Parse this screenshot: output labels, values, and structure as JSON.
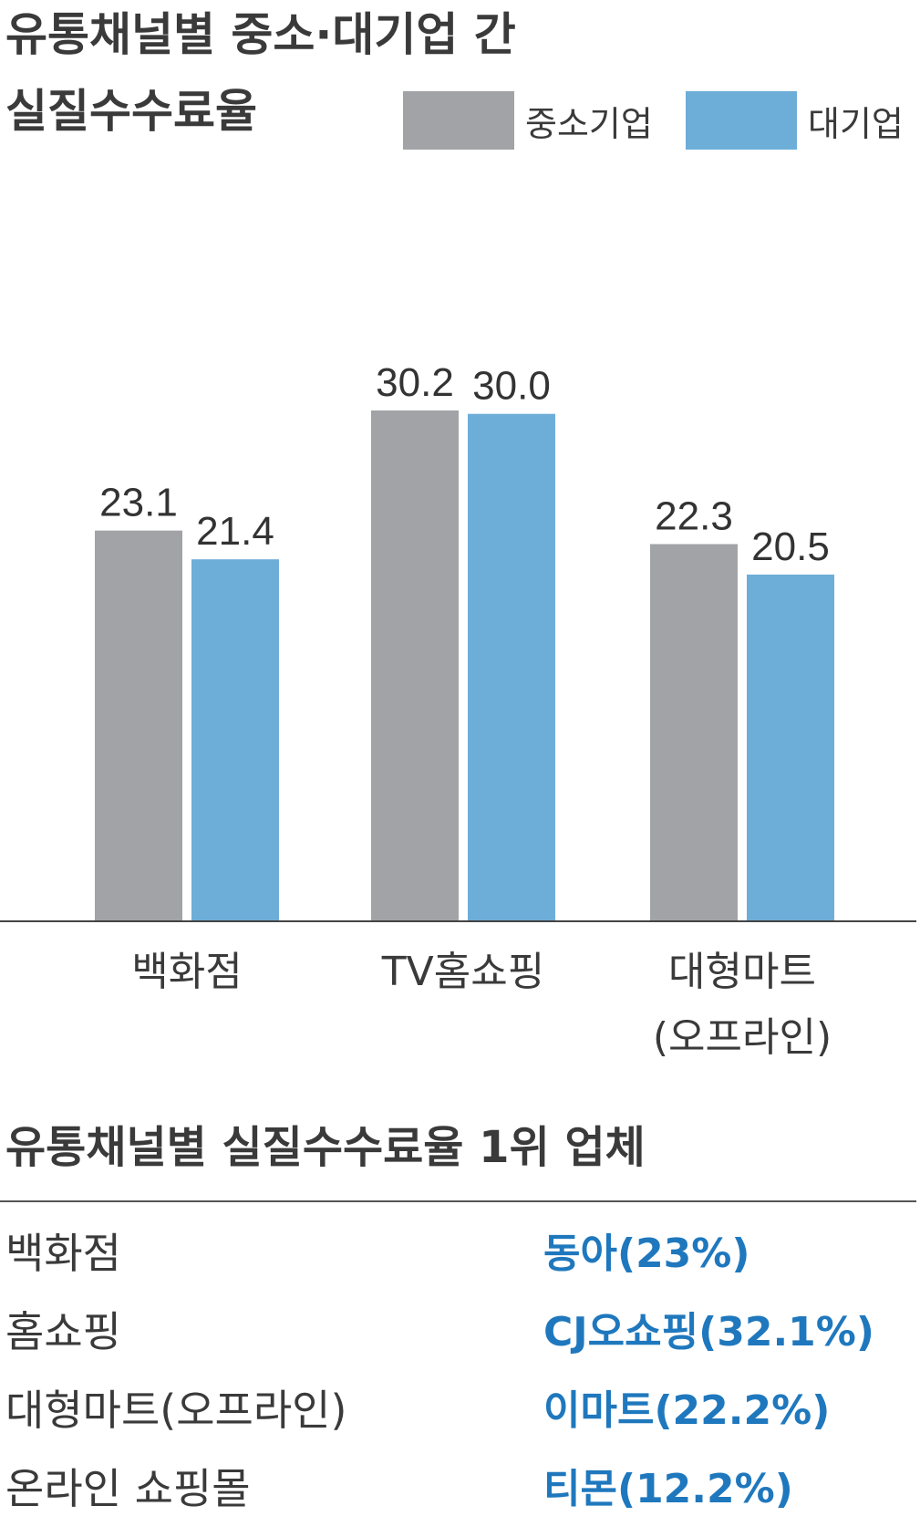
{
  "title": {
    "line1": "유통채널별 중소·대기업 간",
    "line2": "실질수수료율"
  },
  "legend": [
    {
      "label": "중소기업",
      "color": "#a1a3a6"
    },
    {
      "label": "대기업",
      "color": "#6daed8"
    }
  ],
  "chart_data": {
    "type": "bar",
    "title": "유통채널별 중소·대기업 간 실질수수료율",
    "categories": [
      [
        "백화점"
      ],
      [
        "TV홈쇼핑"
      ],
      [
        "대형마트",
        "(오프라인)"
      ]
    ],
    "series": [
      {
        "name": "중소기업",
        "values": [
          23.1,
          30.2,
          22.3
        ],
        "labels": [
          "23.1",
          "30.2",
          "22.3"
        ],
        "color": "#a1a3a6"
      },
      {
        "name": "대기업",
        "values": [
          21.4,
          30.0,
          20.5
        ],
        "labels": [
          "21.4",
          "30.0",
          "20.5"
        ],
        "color": "#6daed8"
      }
    ],
    "ylim": [
      0,
      30.2
    ],
    "grid": false,
    "legend": "top-right"
  },
  "table": {
    "title": "유통채널별 실질수수료율 1위 업체",
    "rows": [
      {
        "channel": "백화점",
        "company": "동아(23%)"
      },
      {
        "channel": "홈쇼핑",
        "company": "CJ오쇼핑(32.1%)"
      },
      {
        "channel": "대형마트(오프라인)",
        "company": "이마트(22.2%)"
      },
      {
        "channel": "온라인 쇼핑몰",
        "company": "티몬(12.2%)"
      }
    ]
  }
}
